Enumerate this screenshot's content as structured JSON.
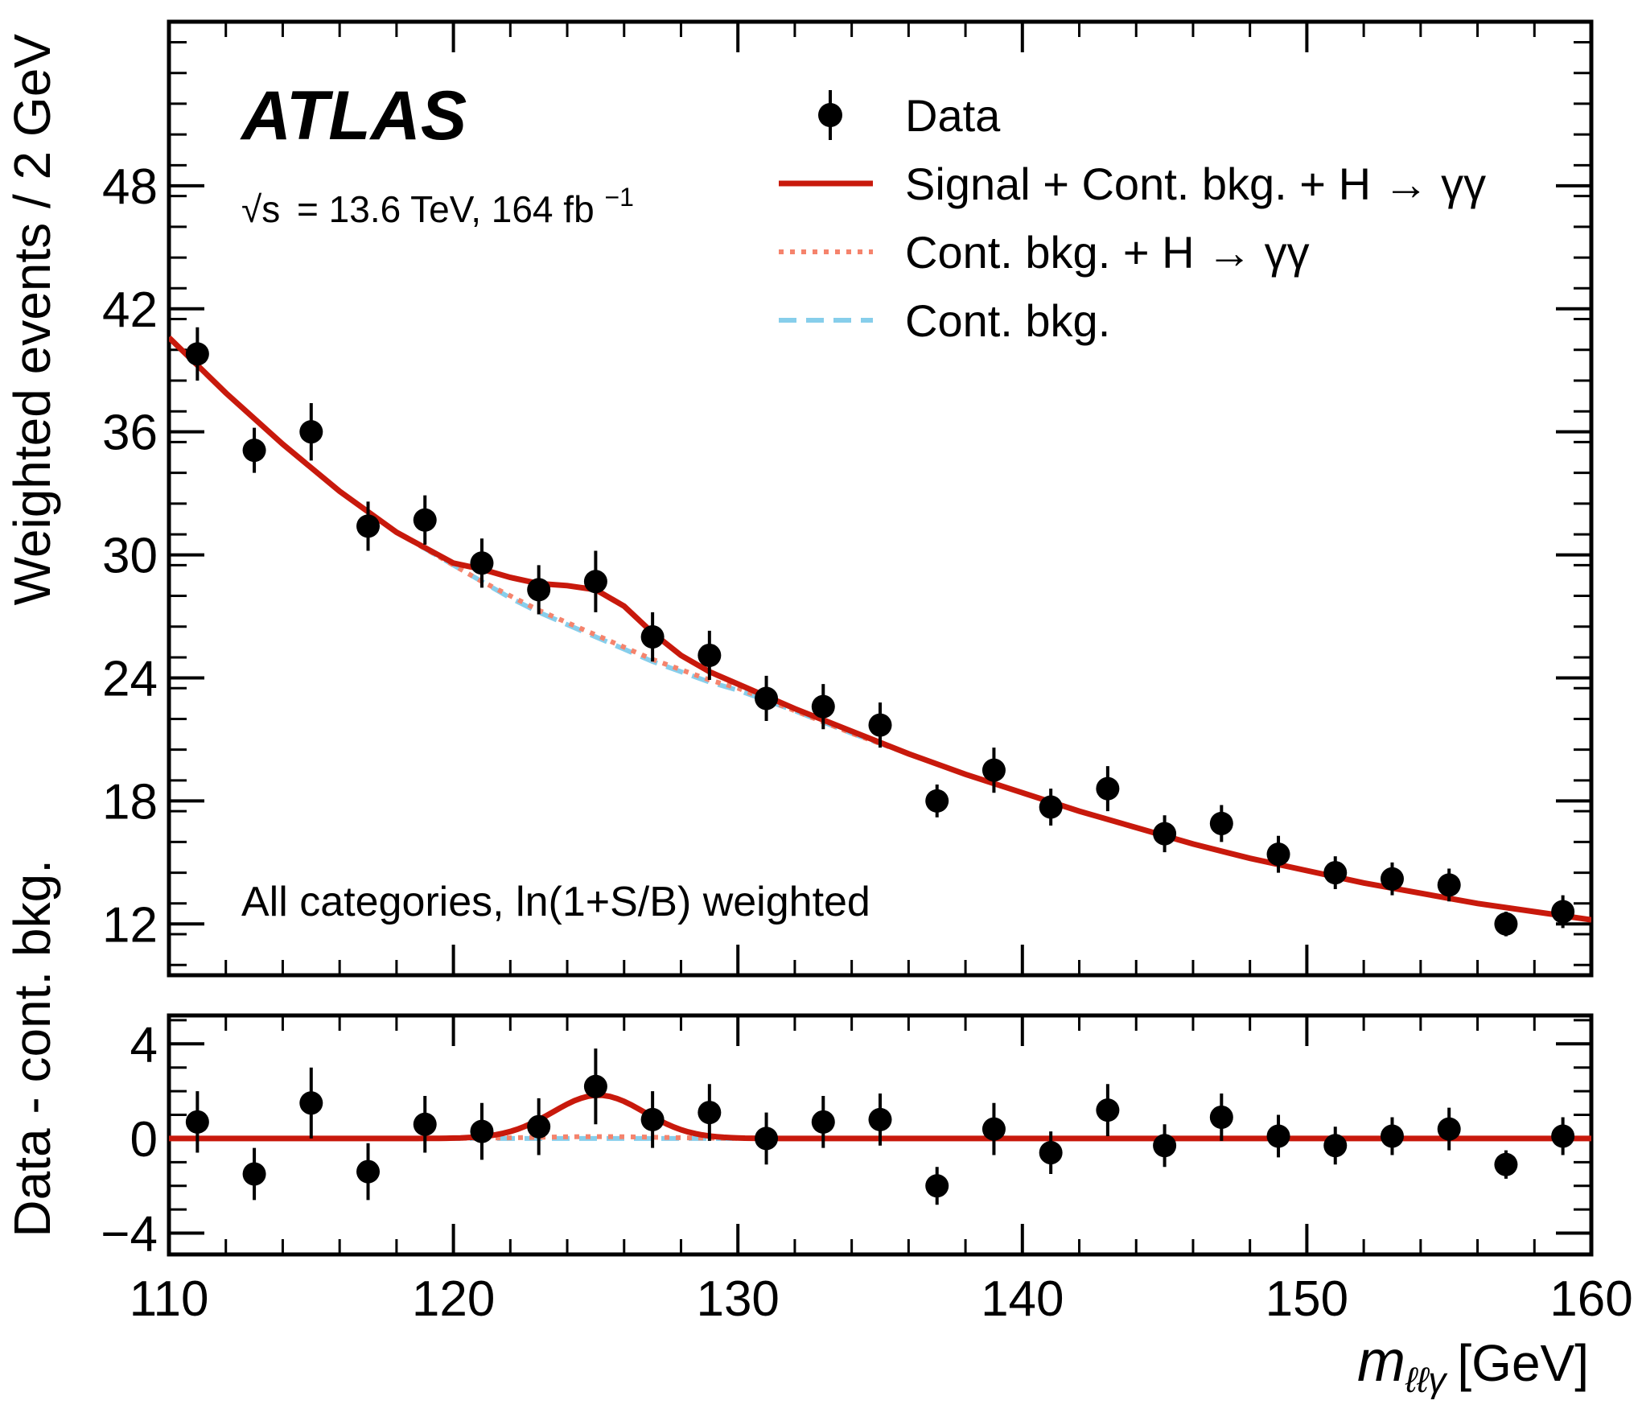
{
  "chart_data": {
    "type": "scatter",
    "title": "",
    "experiment": "ATLAS",
    "energy_label": "= 13.6 TeV, 164 fb",
    "energy_sqrt_symbol": "√s",
    "energy_exponent": "−1",
    "annotation": "All categories, ln(1+S/B) weighted",
    "xlabel": {
      "symbol": "m",
      "subscript": "ℓℓγ",
      "unit": "[GeV]"
    },
    "xlim": [
      110,
      160
    ],
    "x_ticks": [
      "110",
      "120",
      "130",
      "140",
      "150",
      "160"
    ],
    "colors": {
      "data": "#000000",
      "signal": "#c8190c",
      "cont_higgs": "#f5836c",
      "cont": "#87ceeb"
    },
    "legend": {
      "placement": "top-right",
      "entries": [
        {
          "label": "Data",
          "style": "marker"
        },
        {
          "label": "Signal + Cont. bkg. + H → γγ",
          "style": "solid"
        },
        {
          "label": "Cont. bkg. + H → γγ",
          "style": "dotted"
        },
        {
          "label": "Cont. bkg.",
          "style": "dashed"
        }
      ]
    },
    "main_panel": {
      "ylabel": "Weighted events / 2 GeV",
      "ylim": [
        9.5,
        56
      ],
      "y_ticks": [
        "12",
        "18",
        "24",
        "30",
        "36",
        "42",
        "48"
      ],
      "data": {
        "x": [
          111,
          113,
          115,
          117,
          119,
          121,
          123,
          125,
          127,
          129,
          131,
          133,
          135,
          137,
          139,
          141,
          143,
          145,
          147,
          149,
          151,
          153,
          155,
          157,
          159
        ],
        "y": [
          39.8,
          35.1,
          36.0,
          31.4,
          31.7,
          29.6,
          28.3,
          28.7,
          26.0,
          25.1,
          23.0,
          22.6,
          21.7,
          18.0,
          19.5,
          17.7,
          18.6,
          16.4,
          16.9,
          15.4,
          14.5,
          14.2,
          13.9,
          12.0,
          12.6
        ],
        "err": [
          1.3,
          1.1,
          1.4,
          1.2,
          1.2,
          1.2,
          1.2,
          1.5,
          1.2,
          1.2,
          1.1,
          1.1,
          1.1,
          0.8,
          1.1,
          0.9,
          1.1,
          0.9,
          0.9,
          0.9,
          0.8,
          0.8,
          0.8,
          0.6,
          0.8
        ]
      },
      "curves": {
        "x": [
          110,
          112,
          114,
          116,
          118,
          120,
          121,
          122,
          123,
          124,
          125,
          126,
          127,
          128,
          129,
          130,
          132,
          134,
          136,
          138,
          140,
          142,
          144,
          146,
          148,
          150,
          152,
          154,
          156,
          158,
          160
        ],
        "signal_plus_bkg": [
          40.6,
          37.9,
          35.4,
          33.1,
          31.1,
          29.6,
          29.3,
          28.9,
          28.6,
          28.5,
          28.3,
          27.5,
          26.2,
          25.1,
          24.3,
          23.7,
          22.5,
          21.4,
          20.3,
          19.3,
          18.4,
          17.5,
          16.7,
          15.9,
          15.2,
          14.6,
          14.0,
          13.5,
          13.0,
          12.6,
          12.2
        ],
        "cont_plus_higgs": [
          40.6,
          37.9,
          35.4,
          33.1,
          31.1,
          29.5,
          28.7,
          28.0,
          27.3,
          26.7,
          26.1,
          25.5,
          24.9,
          24.4,
          23.9,
          23.5,
          22.4,
          21.3,
          20.3,
          19.3,
          18.4,
          17.5,
          16.7,
          15.9,
          15.2,
          14.6,
          14.0,
          13.5,
          13.0,
          12.6,
          12.2
        ],
        "cont": [
          40.6,
          37.9,
          35.4,
          33.1,
          31.1,
          29.5,
          28.7,
          27.9,
          27.2,
          26.6,
          26.0,
          25.4,
          24.8,
          24.3,
          23.8,
          23.4,
          22.4,
          21.3,
          20.3,
          19.3,
          18.4,
          17.5,
          16.7,
          15.9,
          15.2,
          14.6,
          14.0,
          13.5,
          13.0,
          12.6,
          12.2
        ]
      }
    },
    "ratio_panel": {
      "ylabel": "Data - cont. bkg.",
      "ylim": [
        -4.9,
        5.2
      ],
      "y_ticks": [
        "4",
        "0",
        "−4"
      ],
      "data": {
        "x": [
          111,
          113,
          115,
          117,
          119,
          121,
          123,
          125,
          127,
          129,
          131,
          133,
          135,
          137,
          139,
          141,
          143,
          145,
          147,
          149,
          151,
          153,
          155,
          157,
          159
        ],
        "y": [
          0.7,
          -1.5,
          1.5,
          -1.4,
          0.6,
          0.3,
          0.5,
          2.2,
          0.8,
          1.1,
          0.0,
          0.7,
          0.8,
          -2.0,
          0.4,
          -0.6,
          1.2,
          -0.3,
          0.9,
          0.1,
          -0.3,
          0.1,
          0.4,
          -1.1,
          0.1
        ],
        "err": [
          1.3,
          1.1,
          1.5,
          1.2,
          1.2,
          1.2,
          1.2,
          1.6,
          1.2,
          1.2,
          1.1,
          1.1,
          1.1,
          0.8,
          1.1,
          0.9,
          1.1,
          0.9,
          1.0,
          0.9,
          0.8,
          0.8,
          0.9,
          0.6,
          0.8
        ]
      },
      "signal_peak": {
        "mean": 125.1,
        "sigma": 1.6,
        "amplitude": 1.75
      },
      "higgs_bkg_level": 0.08
    }
  }
}
